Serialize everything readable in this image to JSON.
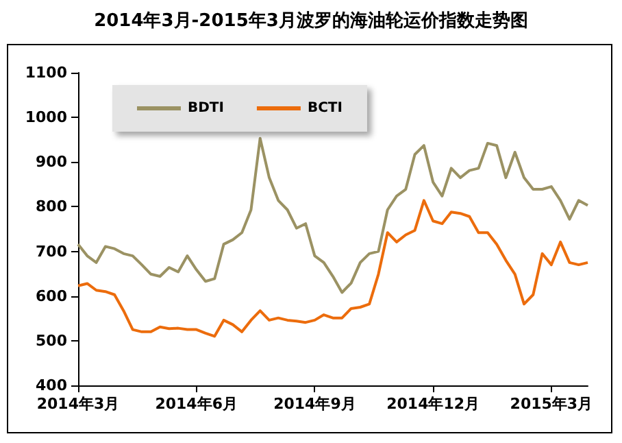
{
  "chart_data": {
    "type": "line",
    "title": "2014年3月-2015年3月波罗的海油轮运价指数走势图",
    "categories": [
      "2014年3月",
      null,
      null,
      null,
      null,
      null,
      null,
      null,
      null,
      null,
      null,
      null,
      null,
      "2014年6月",
      null,
      null,
      null,
      null,
      null,
      null,
      null,
      null,
      null,
      null,
      null,
      null,
      "2014年9月",
      null,
      null,
      null,
      null,
      null,
      null,
      null,
      null,
      null,
      null,
      null,
      null,
      "2014年12月",
      null,
      null,
      null,
      null,
      null,
      null,
      null,
      null,
      null,
      null,
      null,
      null,
      "2015年3月",
      null,
      null,
      null,
      null
    ],
    "series": [
      {
        "name": "BDTI",
        "color": "#9b9263",
        "values": [
          716,
          690,
          675,
          711,
          706,
          695,
          690,
          670,
          649,
          644,
          664,
          654,
          690,
          659,
          633,
          639,
          716,
          726,
          742,
          793,
          953,
          865,
          814,
          793,
          752,
          762,
          690,
          675,
          644,
          608,
          629,
          675,
          695,
          700,
          793,
          824,
          839,
          917,
          937,
          855,
          824,
          886,
          865,
          881,
          886,
          942,
          937,
          865,
          922,
          865,
          839,
          839,
          845,
          814,
          772,
          814,
          803
        ]
      },
      {
        "name": "BCTI",
        "color": "#ec6c0c",
        "values": [
          623,
          628,
          613,
          610,
          603,
          567,
          525,
          520,
          520,
          531,
          527,
          528,
          525,
          525,
          517,
          510,
          546,
          536,
          520,
          546,
          567,
          546,
          551,
          546,
          544,
          541,
          546,
          558,
          551,
          551,
          572,
          575,
          582,
          649,
          742,
          721,
          737,
          747,
          814,
          768,
          762,
          788,
          785,
          778,
          742,
          742,
          716,
          680,
          649,
          582,
          603,
          695,
          670,
          721,
          675,
          670,
          675
        ]
      }
    ],
    "ylim": [
      400,
      1100
    ],
    "yticks": [
      400,
      500,
      600,
      700,
      800,
      900,
      1000,
      1100
    ],
    "grid": false,
    "legend": "top left",
    "marker": "none",
    "line_style": "solid"
  }
}
